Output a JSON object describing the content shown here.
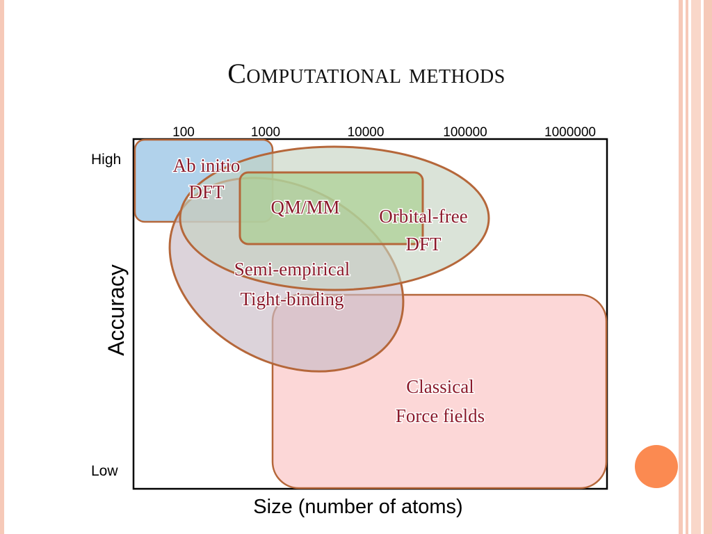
{
  "slide": {
    "title": "Computational methods"
  },
  "diagram": {
    "x_axis": {
      "label": "Size (number of atoms)",
      "ticks": [
        "100",
        "1000",
        "10000",
        "100000",
        "1000000"
      ]
    },
    "y_axis": {
      "label": "Accuracy",
      "high": "High",
      "low": "Low"
    },
    "regions": {
      "ab_initio": {
        "line1": "Ab initio",
        "line2": "DFT",
        "fill": "#a9cde9"
      },
      "qmmm": {
        "line1": "QM/MM",
        "fill": "#a7cf8d"
      },
      "orbital_free": {
        "line1": "Orbital-free",
        "line2": "DFT",
        "fill": "#c4d2c0"
      },
      "semi_empirical": {
        "line1": "Semi-empirical",
        "line2": "Tight-binding",
        "fill": "#c9bcc6"
      },
      "classical": {
        "line1": "Classical",
        "line2": "Force fields",
        "fill": "#fcd3d3"
      }
    },
    "outline_color": "#b5673a",
    "label_color": "#8b1a2b"
  }
}
